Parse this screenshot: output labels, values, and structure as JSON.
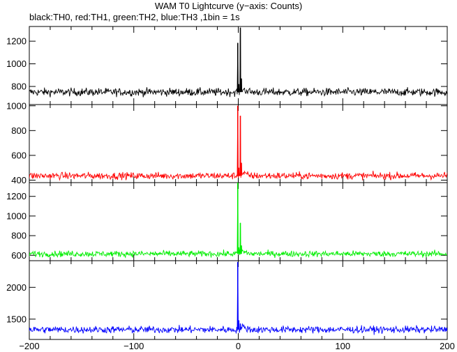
{
  "title": "WAM T0 Lightcurve (y−axis: Counts)",
  "subtitle": "black:TH0, red:TH1, green:TH2, blue:TH3 ,1bin = 1s",
  "chart_data": [
    {
      "type": "line",
      "name": "TH0",
      "color": "#000000",
      "xlim": [
        -200,
        200
      ],
      "ylim": [
        640,
        1330
      ],
      "yticks": [
        800,
        1000,
        1200
      ],
      "ytick_labels": [
        "800",
        "1000",
        "1200"
      ],
      "baseline": 750,
      "noise": 25,
      "peaks": [
        {
          "x": -0.5,
          "y": 1185
        },
        {
          "x": 0.5,
          "y": 820
        },
        {
          "x": 2,
          "y": 1320
        },
        {
          "x": 3,
          "y": 870
        }
      ]
    },
    {
      "type": "line",
      "name": "TH1",
      "color": "#ff0000",
      "xlim": [
        -200,
        200
      ],
      "ylim": [
        380,
        1010
      ],
      "yticks": [
        400,
        600,
        800,
        1000
      ],
      "ytick_labels": [
        "400",
        "600",
        "800",
        "1000"
      ],
      "baseline": 435,
      "noise": 20,
      "peaks": [
        {
          "x": -0.5,
          "y": 1000
        },
        {
          "x": 0.5,
          "y": 500
        },
        {
          "x": 2,
          "y": 920
        },
        {
          "x": 3,
          "y": 540
        }
      ]
    },
    {
      "type": "line",
      "name": "TH2",
      "color": "#00ee00",
      "xlim": [
        -200,
        200
      ],
      "ylim": [
        545,
        1340
      ],
      "yticks": [
        600,
        800,
        1000,
        1200
      ],
      "ytick_labels": [
        "600",
        "800",
        "1000",
        "1200"
      ],
      "baseline": 615,
      "noise": 22,
      "peaks": [
        {
          "x": -0.5,
          "y": 1340
        },
        {
          "x": 0.5,
          "y": 680
        },
        {
          "x": 2,
          "y": 930
        },
        {
          "x": 3,
          "y": 700
        }
      ]
    },
    {
      "type": "line",
      "name": "TH3",
      "color": "#0000ff",
      "xlim": [
        -200,
        200
      ],
      "ylim": [
        1180,
        2420
      ],
      "yticks": [
        1500,
        2000
      ],
      "ytick_labels": [
        "1500",
        "2000"
      ],
      "baseline": 1335,
      "noise": 40,
      "peaks": [
        {
          "x": -0.5,
          "y": 2400
        },
        {
          "x": 0.5,
          "y": 1480
        },
        {
          "x": 2,
          "y": 1430
        }
      ]
    }
  ],
  "x_axis": {
    "ticks": [
      -200,
      -100,
      0,
      100,
      200
    ],
    "tick_labels": [
      "−200",
      "−100",
      "0",
      "100",
      "200"
    ],
    "xlabel": ""
  }
}
